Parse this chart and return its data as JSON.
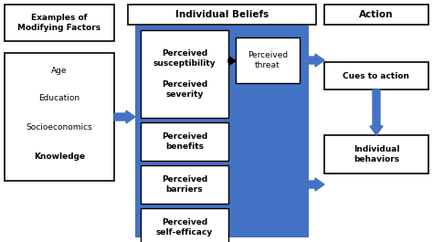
{
  "bg_color": "#ffffff",
  "blue_bg": "#4472C4",
  "arrow_color": "#4472C4",
  "box_fill": "#ffffff",
  "box_edge": "#000000",
  "title1": "Examples of\nModifying Factors",
  "title2": "Individual Beliefs",
  "title3": "Action",
  "factors": [
    "Age",
    "Education",
    "Socioeconomics",
    "Knowledge"
  ],
  "belief_sus_sev": "Perceived\nsusceptibility\n\nPerceived\nseverity",
  "belief_threat": "Perceived\nthreat",
  "belief_benefits": "Perceived\nbenefits",
  "belief_barriers": "Perceived\nbarriers",
  "belief_selfefficacy": "Perceived\nself-efficacy",
  "action_top": "Cues to action",
  "action_bot": "Individual\nbehaviors"
}
